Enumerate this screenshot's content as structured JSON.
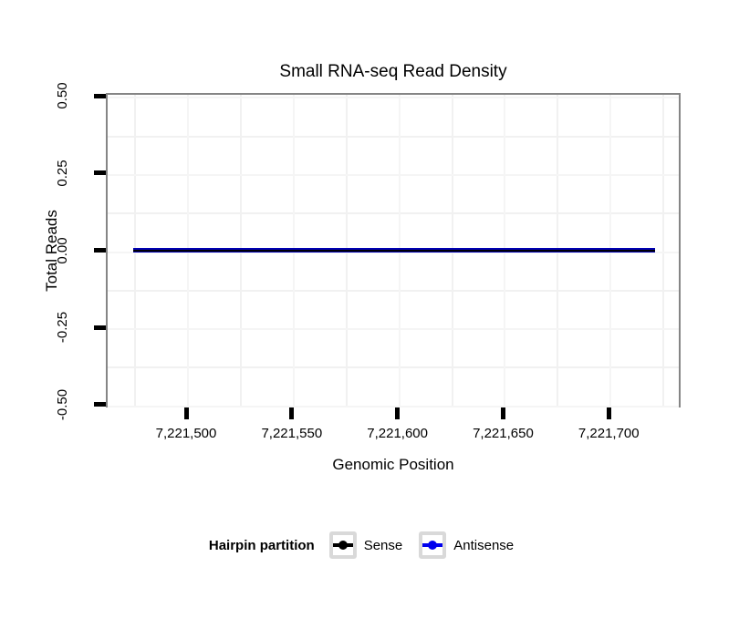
{
  "chart_data": {
    "type": "line",
    "title": "Small RNA-seq Read Density",
    "xlabel": "Genomic Position",
    "ylabel": "Total Reads",
    "xlim": [
      7221462,
      7221734
    ],
    "ylim": [
      -0.51,
      0.51
    ],
    "x_ticks": [
      {
        "value": 7221500,
        "label": "7,221,500"
      },
      {
        "value": 7221550,
        "label": "7,221,550"
      },
      {
        "value": 7221600,
        "label": "7,221,600"
      },
      {
        "value": 7221650,
        "label": "7,221,650"
      },
      {
        "value": 7221700,
        "label": "7,221,700"
      }
    ],
    "x_minor_ticks": [
      7221475,
      7221525,
      7221575,
      7221625,
      7221675,
      7221725
    ],
    "y_ticks": [
      {
        "value": 0.5,
        "label": "0.50"
      },
      {
        "value": 0.25,
        "label": "0.25"
      },
      {
        "value": 0.0,
        "label": "0.00"
      },
      {
        "value": -0.25,
        "label": "-0.25"
      },
      {
        "value": -0.5,
        "label": "-0.50"
      }
    ],
    "y_minor_ticks": [
      0.375,
      0.125,
      -0.125,
      -0.375
    ],
    "grid": "major and minor, very faint, on white panel",
    "series": [
      {
        "name": "Sense",
        "color": "#000000",
        "x": [
          7221475,
          7221722
        ],
        "y": [
          0,
          0
        ]
      },
      {
        "name": "Antisense",
        "color": "#0000ee",
        "x": [
          7221475,
          7221722
        ],
        "y": [
          0,
          0
        ]
      }
    ],
    "legend": {
      "title": "Hairpin partition",
      "position": "bottom",
      "entries": [
        {
          "label": "Sense",
          "color": "#000000"
        },
        {
          "label": "Antisense",
          "color": "#0000ee"
        }
      ]
    }
  },
  "colors": {
    "panel_border": "#858585",
    "tick_mark": "#000000",
    "grid_major": "#f5f5f5",
    "grid_minor": "#f1f1f1",
    "legend_key_border": "#d9d9d9",
    "line_blue": "#0000b4",
    "line_black": "#000000"
  }
}
